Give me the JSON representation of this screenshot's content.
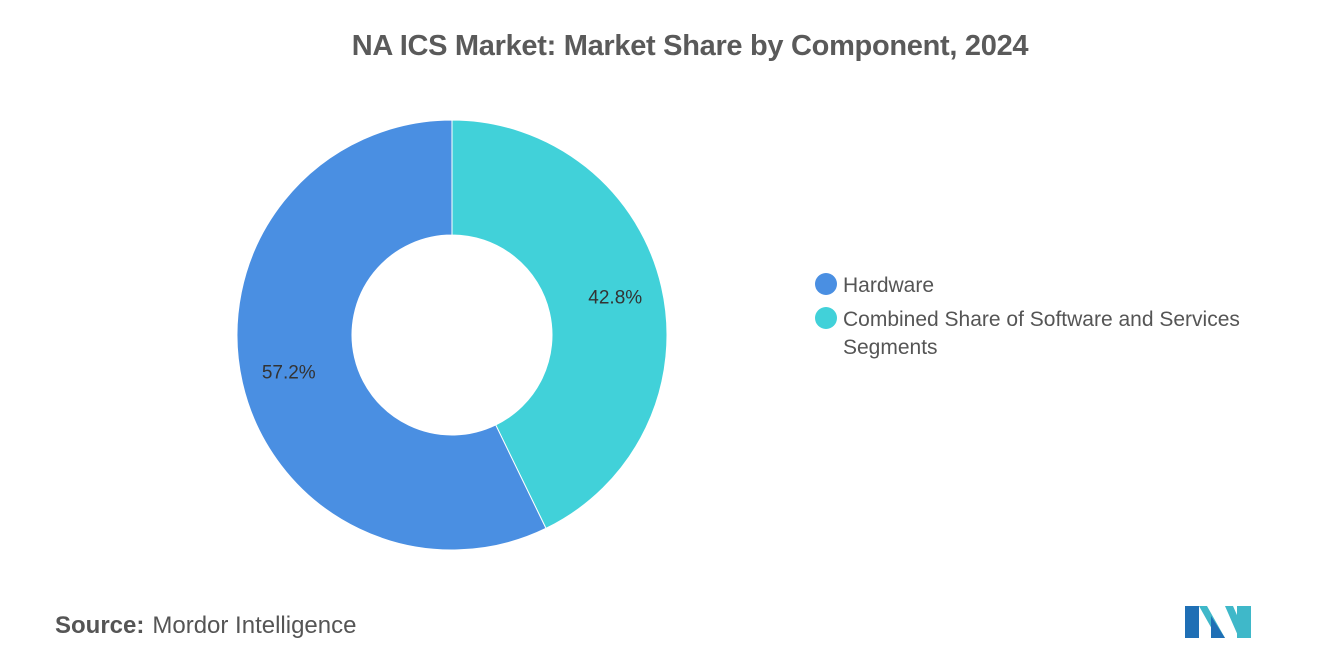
{
  "chart_data": {
    "type": "pie",
    "title": "NA ICS Market: Market Share by Component, 2024",
    "donut": true,
    "categories": [
      "Hardware",
      "Combined Share of Software and Services Segments"
    ],
    "values": [
      57.2,
      42.8
    ],
    "labels": [
      "57.2%",
      "42.8%"
    ],
    "colors": [
      "#4a8fe2",
      "#41d1d9"
    ],
    "legend_position": "right"
  },
  "source": {
    "label": "Source:",
    "value": "Mordor Intelligence"
  },
  "logo": {
    "icon": "mordor-intelligence-logo-icon",
    "colors": [
      "#1f6fb5",
      "#3fb8c9"
    ]
  }
}
